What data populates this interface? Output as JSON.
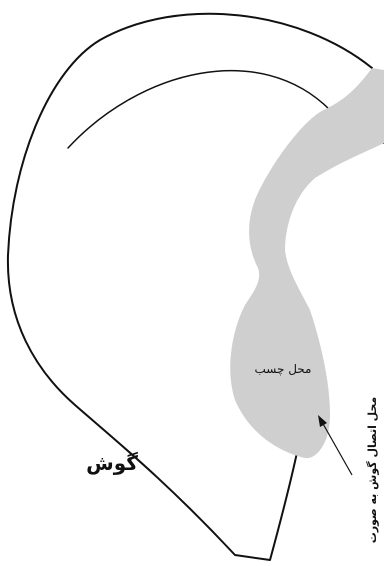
{
  "labels": {
    "glue_area": "محل چسب",
    "ear": "گوش",
    "attachment": "محل اتصال گوش به صورت"
  },
  "colors": {
    "outline": "#111111",
    "glue_fill": "#cfcfcf",
    "background": "#ffffff"
  }
}
